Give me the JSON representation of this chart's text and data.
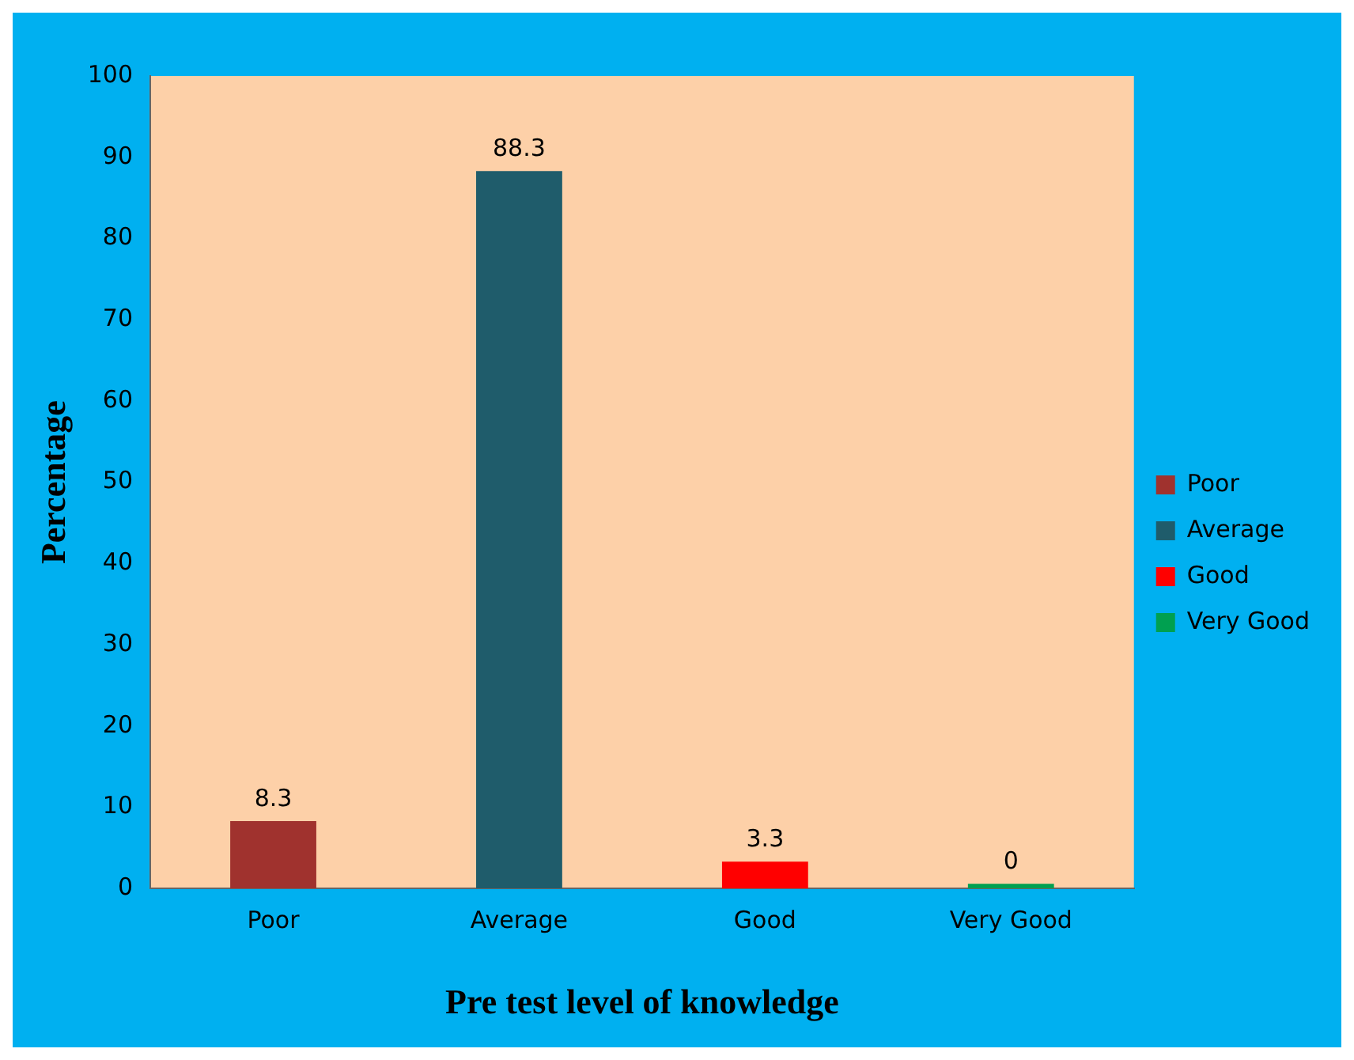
{
  "chart_data": {
    "type": "bar",
    "xlabel": "Pre test level of knowledge",
    "ylabel": "Percentage",
    "categories": [
      "Poor",
      "Average",
      "Good",
      "Very Good"
    ],
    "series": [
      {
        "name": "Poor",
        "color": "#a0322e",
        "values": [
          8.3,
          null,
          null,
          null
        ]
      },
      {
        "name": "Average",
        "color": "#1f5c6b",
        "values": [
          null,
          88.3,
          null,
          null
        ]
      },
      {
        "name": "Good",
        "color": "#ff0000",
        "values": [
          null,
          null,
          3.3,
          null
        ]
      },
      {
        "name": "Very Good",
        "color": "#00a050",
        "values": [
          null,
          null,
          null,
          0
        ]
      }
    ],
    "ylim": [
      0,
      100
    ],
    "yticks": [
      0,
      10,
      20,
      30,
      40,
      50,
      60,
      70,
      80,
      90,
      100
    ],
    "data_labels": true,
    "legend": "right",
    "grid": false
  }
}
